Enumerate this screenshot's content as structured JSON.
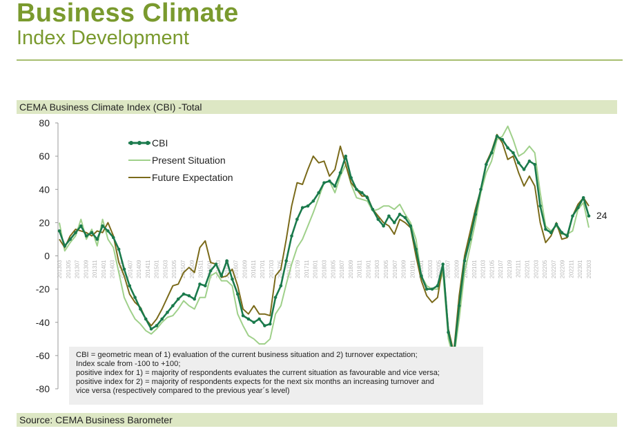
{
  "header": {
    "title": "Business Climate",
    "subtitle": "Index Development"
  },
  "chart_data": {
    "type": "line",
    "title": "CEMA Business Climate Index (CBI) -Total",
    "ylim": [
      -80,
      80
    ],
    "yticks": [
      -80,
      -60,
      -40,
      -20,
      0,
      20,
      40,
      60,
      80
    ],
    "grid": false,
    "legend_position": "top-left",
    "x_tick_labels": [
      "201303",
      "201305",
      "201307",
      "201309",
      "201311",
      "201401",
      "201403",
      "201405",
      "201407",
      "201409",
      "201411",
      "201501",
      "201503",
      "201505",
      "201507",
      "201509",
      "201511",
      "201601",
      "201603",
      "201605",
      "201607",
      "201609",
      "201611",
      "201701",
      "201703",
      "201705",
      "201707",
      "201709",
      "201711",
      "201801",
      "201803",
      "201805",
      "201807",
      "201809",
      "201811",
      "201901",
      "201903",
      "201905",
      "201907",
      "201909",
      "201911",
      "202001",
      "202003",
      "202005",
      "202007",
      "202009",
      "202011",
      "202101",
      "202103",
      "202105",
      "202107",
      "202109",
      "202111",
      "202201",
      "202203",
      "202205",
      "202207",
      "202209",
      "202211",
      "202301",
      "202303"
    ],
    "series": [
      {
        "name": "CBI",
        "color": "#1a7a4c",
        "marker": "circle",
        "values": [
          15,
          6,
          10,
          14,
          18,
          12,
          14,
          10,
          18,
          15,
          11,
          4,
          -8,
          -18,
          -25,
          -32,
          -38,
          -44,
          -42,
          -38,
          -34,
          -30,
          -26,
          -23,
          -24,
          -26,
          -17,
          -18,
          -9,
          -5,
          -12,
          -3,
          -14,
          -23,
          -36,
          -38,
          -40,
          -38,
          -42,
          -41,
          -25,
          -18,
          -3,
          12,
          22,
          29,
          30,
          33,
          38,
          44,
          45,
          42,
          50,
          60,
          47,
          40,
          38,
          35,
          28,
          22,
          18,
          24,
          20,
          25,
          23,
          18,
          4,
          -12,
          -20,
          -20,
          -18,
          -5,
          -46,
          -60,
          -30,
          -3,
          10,
          25,
          40,
          55,
          62,
          72,
          70,
          65,
          62,
          56,
          52,
          57,
          55,
          30,
          16,
          14,
          19,
          14,
          12,
          24,
          29,
          35,
          24
        ]
      },
      {
        "name": "Present Situation",
        "color": "#9fd08a",
        "marker": "none",
        "values": [
          20,
          3,
          8,
          12,
          22,
          10,
          16,
          6,
          22,
          10,
          5,
          -10,
          -25,
          -32,
          -38,
          -41,
          -45,
          -47,
          -44,
          -40,
          -37,
          -36,
          -32,
          -27,
          -30,
          -32,
          -25,
          -25,
          -12,
          -10,
          -15,
          -15,
          -18,
          -35,
          -42,
          -48,
          -50,
          -53,
          -53,
          -50,
          -35,
          -30,
          -17,
          -5,
          5,
          10,
          18,
          26,
          35,
          44,
          45,
          38,
          48,
          55,
          43,
          35,
          34,
          33,
          27,
          28,
          30,
          30,
          28,
          31,
          25,
          20,
          10,
          -12,
          -18,
          -20,
          -20,
          -10,
          -50,
          -62,
          -38,
          -10,
          5,
          20,
          38,
          50,
          57,
          70,
          72,
          78,
          70,
          60,
          62,
          66,
          62,
          38,
          18,
          15,
          18,
          13,
          13,
          15,
          28,
          32,
          17
        ]
      },
      {
        "name": "Future Expectation",
        "color": "#7a6a1a",
        "marker": "none",
        "values": [
          10,
          5,
          12,
          16,
          15,
          14,
          12,
          15,
          14,
          20,
          12,
          -4,
          -12,
          -23,
          -28,
          -31,
          -38,
          -42,
          -38,
          -32,
          -25,
          -18,
          -17,
          -10,
          -7,
          -10,
          5,
          9,
          -4,
          -5,
          -13,
          -12,
          -8,
          -18,
          -32,
          -35,
          -30,
          -35,
          -35,
          -36,
          -12,
          -8,
          10,
          30,
          44,
          43,
          52,
          60,
          56,
          57,
          48,
          52,
          66,
          55,
          44,
          40,
          36,
          36,
          28,
          24,
          20,
          18,
          13,
          22,
          20,
          17,
          0,
          -15,
          -24,
          -28,
          -25,
          -5,
          -44,
          -58,
          -24,
          0,
          14,
          28,
          40,
          56,
          63,
          73,
          68,
          58,
          60,
          50,
          42,
          48,
          42,
          20,
          8,
          12,
          20,
          10,
          11,
          24,
          31,
          35,
          30
        ]
      }
    ],
    "end_label": "24",
    "notes": [
      "CBI = geometric mean of 1) evaluation of the current business situation and 2) turnover expectation;",
      "Index scale from -100 to +100;",
      "positive index for 1) = majority of respondents evaluates the current situation as favourable and vice versa;",
      "positive index for 2) = majority of respondents expects for the next six months an increasing turnover and",
      "vice versa (respectively compared to the previous year´s level)"
    ],
    "source": "Source: CEMA Business Barometer"
  }
}
